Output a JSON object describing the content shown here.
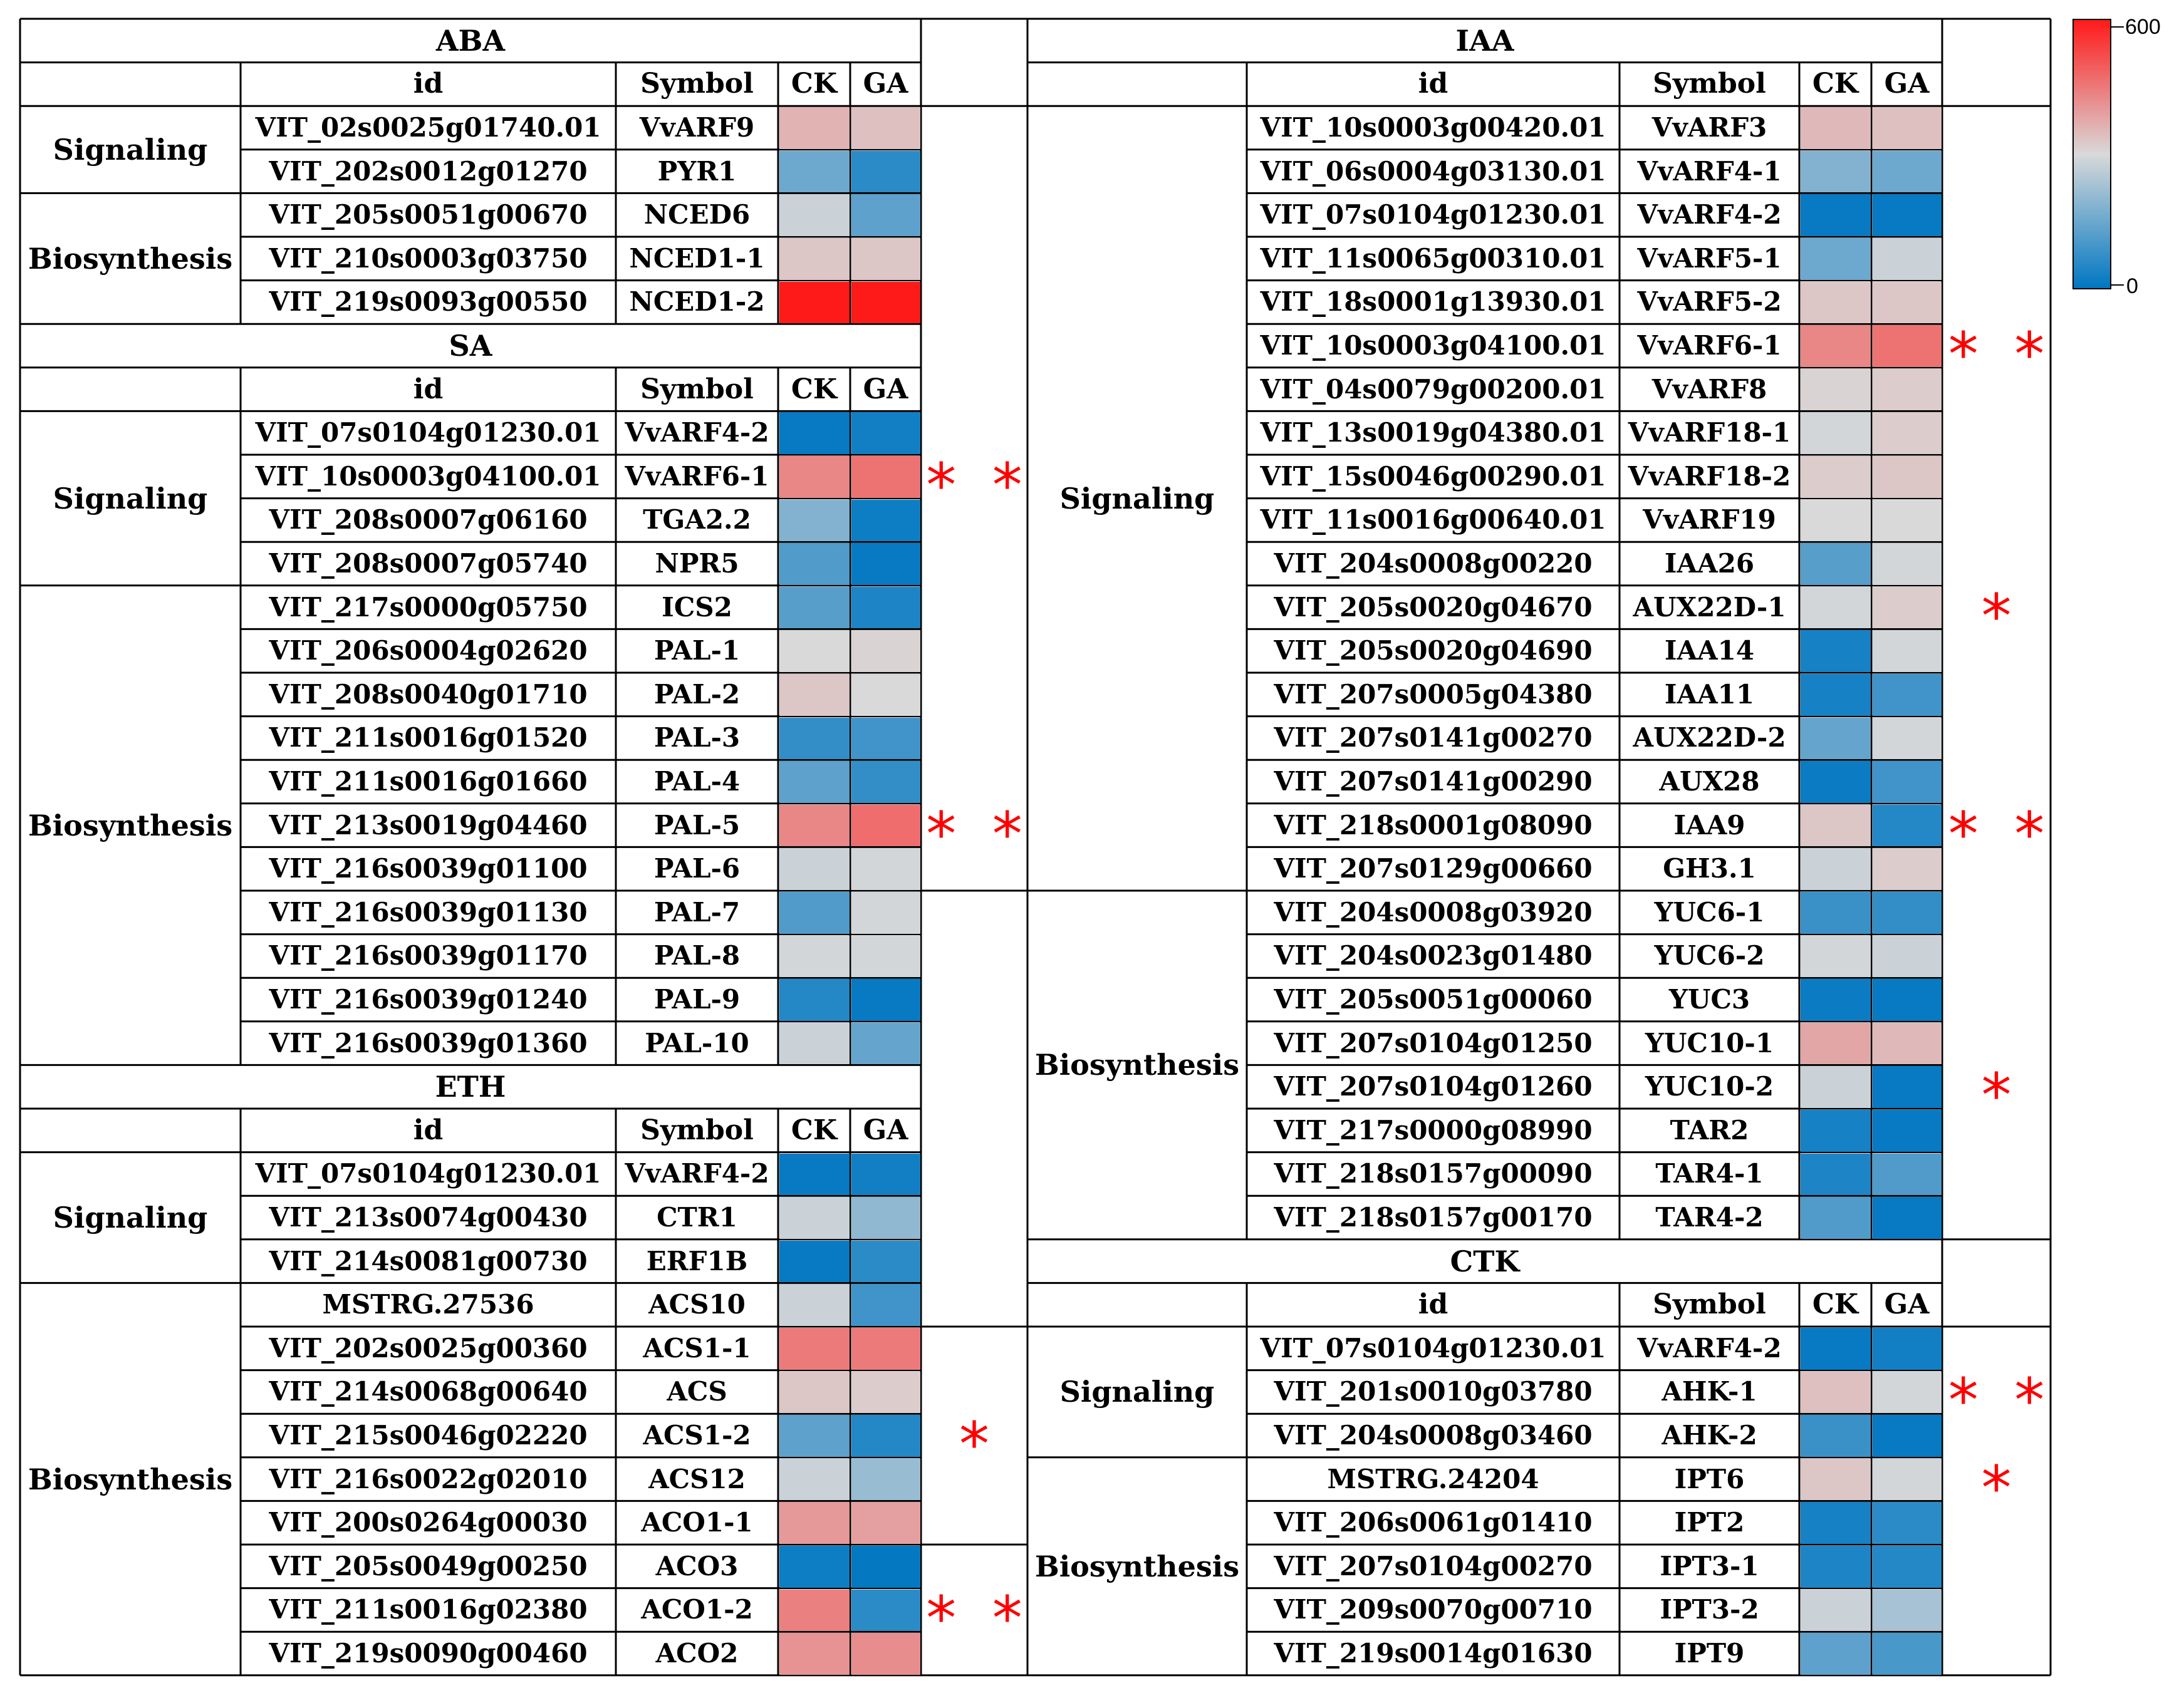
{
  "colorscale": {
    "max_label": "600",
    "min_label": "0",
    "max_value": 600,
    "low_color": "#0077c2",
    "mid_color": "#d9d9d9",
    "high_color": "#ff1a1a"
  },
  "headers": {
    "id": "id",
    "symbol": "Symbol",
    "ck": "CK",
    "ga": "GA"
  },
  "left_sections": [
    {
      "title": "ABA",
      "groups": [
        {
          "category": "Signaling",
          "rows": [
            {
              "id": "VIT_02s0025g01740.01",
              "symbol": "VvARF9",
              "ck": 360,
              "ga": 340,
              "sig": ""
            },
            {
              "id": "VIT_202s0012g01270",
              "symbol": "PYR1",
              "ck": 150,
              "ga": 60,
              "sig": ""
            }
          ]
        },
        {
          "category": "Biosynthesis",
          "rows": [
            {
              "id": "VIT_205s0051g00670",
              "symbol": "NCED6",
              "ck": 280,
              "ga": 130,
              "sig": ""
            },
            {
              "id": "VIT_210s0003g03750",
              "symbol": "NCED1-1",
              "ck": 330,
              "ga": 330,
              "sig": ""
            },
            {
              "id": "VIT_219s0093g00550",
              "symbol": "NCED1-2",
              "ck": 600,
              "ga": 600,
              "sig": ""
            }
          ]
        }
      ]
    },
    {
      "title": "SA",
      "groups": [
        {
          "category": "Signaling",
          "rows": [
            {
              "id": "VIT_07s0104g01230.01",
              "symbol": "VvARF4-2",
              "ck": 10,
              "ga": 25,
              "sig": ""
            },
            {
              "id": "VIT_10s0003g04100.01",
              "symbol": "VvARF6-1",
              "ck": 430,
              "ga": 460,
              "sig": "* *"
            },
            {
              "id": "VIT_208s0007g06160",
              "symbol": "TGA2.2",
              "ck": 180,
              "ga": 20,
              "sig": ""
            },
            {
              "id": "VIT_208s0007g05740",
              "symbol": "NPR5",
              "ck": 110,
              "ga": 10,
              "sig": ""
            }
          ]
        },
        {
          "category": "Biosynthesis",
          "rows": [
            {
              "id": "VIT_217s0000g05750",
              "symbol": "ICS2",
              "ck": 120,
              "ga": 40,
              "sig": ""
            },
            {
              "id": "VIT_206s0004g02620",
              "symbol": "PAL-1",
              "ck": 300,
              "ga": 310,
              "sig": ""
            },
            {
              "id": "VIT_208s0040g01710",
              "symbol": "PAL-2",
              "ck": 330,
              "ga": 300,
              "sig": ""
            },
            {
              "id": "VIT_211s0016g01520",
              "symbol": "PAL-3",
              "ck": 70,
              "ga": 90,
              "sig": ""
            },
            {
              "id": "VIT_211s0016g01660",
              "symbol": "PAL-4",
              "ck": 130,
              "ga": 70,
              "sig": ""
            },
            {
              "id": "VIT_213s0019g04460",
              "symbol": "PAL-5",
              "ck": 430,
              "ga": 470,
              "sig": "* *"
            },
            {
              "id": "VIT_216s0039g01100",
              "symbol": "PAL-6",
              "ck": 280,
              "ga": 290,
              "sig": ""
            },
            {
              "id": "VIT_216s0039g01130",
              "symbol": "PAL-7",
              "ck": 110,
              "ga": 290,
              "sig": ""
            },
            {
              "id": "VIT_216s0039g01170",
              "symbol": "PAL-8",
              "ck": 290,
              "ga": 290,
              "sig": ""
            },
            {
              "id": "VIT_216s0039g01240",
              "symbol": "PAL-9",
              "ck": 50,
              "ga": 10,
              "sig": ""
            },
            {
              "id": "VIT_216s0039g01360",
              "symbol": "PAL-10",
              "ck": 280,
              "ga": 140,
              "sig": ""
            }
          ]
        }
      ]
    },
    {
      "title": "ETH",
      "groups": [
        {
          "category": "Signaling",
          "rows": [
            {
              "id": "VIT_07s0104g01230.01",
              "symbol": "VvARF4-2",
              "ck": 10,
              "ga": 25,
              "sig": ""
            },
            {
              "id": "VIT_213s0074g00430",
              "symbol": "CTR1",
              "ck": 280,
              "ga": 200,
              "sig": ""
            },
            {
              "id": "VIT_214s0081g00730",
              "symbol": "ERF1B",
              "ck": 10,
              "ga": 60,
              "sig": ""
            }
          ]
        },
        {
          "category": "Biosynthesis",
          "rows": [
            {
              "id": "MSTRG.27536",
              "symbol": "ACS10",
              "ck": 280,
              "ga": 90,
              "sig": ""
            },
            {
              "id": "VIT_202s0025g00360",
              "symbol": "ACS1-1",
              "ck": 450,
              "ga": 450,
              "sig": ""
            },
            {
              "id": "VIT_214s0068g00640",
              "symbol": "ACS",
              "ck": 330,
              "ga": 320,
              "sig": ""
            },
            {
              "id": "VIT_215s0046g02220",
              "symbol": "ACS1-2",
              "ck": 130,
              "ga": 50,
              "sig": "*"
            },
            {
              "id": "VIT_216s0022g02010",
              "symbol": "ACS12",
              "ck": 280,
              "ga": 210,
              "sig": ""
            },
            {
              "id": "VIT_200s0264g00030",
              "symbol": "ACO1-1",
              "ck": 400,
              "ga": 390,
              "sig": ""
            },
            {
              "id": "VIT_205s0049g00250",
              "symbol": "ACO3",
              "ck": 20,
              "ga": 5,
              "sig": ""
            },
            {
              "id": "VIT_211s0016g02380",
              "symbol": "ACO1-2",
              "ck": 440,
              "ga": 60,
              "sig": "* *"
            },
            {
              "id": "VIT_219s0090g00460",
              "symbol": "ACO2",
              "ck": 410,
              "ga": 420,
              "sig": ""
            }
          ]
        }
      ]
    }
  ],
  "right_sections": [
    {
      "title": "IAA",
      "groups": [
        {
          "category": "Signaling",
          "rows": [
            {
              "id": "VIT_10s0003g00420.01",
              "symbol": "VvARF3",
              "ck": 350,
              "ga": 340,
              "sig": ""
            },
            {
              "id": "VIT_06s0004g03130.01",
              "symbol": "VvARF4-1",
              "ck": 180,
              "ga": 150,
              "sig": ""
            },
            {
              "id": "VIT_07s0104g01230.01",
              "symbol": "VvARF4-2",
              "ck": 10,
              "ga": 10,
              "sig": ""
            },
            {
              "id": "VIT_11s0065g00310.01",
              "symbol": "VvARF5-1",
              "ck": 150,
              "ga": 280,
              "sig": ""
            },
            {
              "id": "VIT_18s0001g13930.01",
              "symbol": "VvARF5-2",
              "ck": 330,
              "ga": 330,
              "sig": ""
            },
            {
              "id": "VIT_10s0003g04100.01",
              "symbol": "VvARF6-1",
              "ck": 430,
              "ga": 460,
              "sig": "* *"
            },
            {
              "id": "VIT_04s0079g00200.01",
              "symbol": "VvARF8",
              "ck": 310,
              "ga": 320,
              "sig": ""
            },
            {
              "id": "VIT_13s0019g04380.01",
              "symbol": "VvARF18-1",
              "ck": 290,
              "ga": 320,
              "sig": ""
            },
            {
              "id": "VIT_15s0046g00290.01",
              "symbol": "VvARF18-2",
              "ck": 320,
              "ga": 330,
              "sig": ""
            },
            {
              "id": "VIT_11s0016g00640.01",
              "symbol": "VvARF19",
              "ck": 300,
              "ga": 300,
              "sig": ""
            },
            {
              "id": "VIT_204s0008g00220",
              "symbol": "IAA26",
              "ck": 120,
              "ga": 290,
              "sig": ""
            },
            {
              "id": "VIT_205s0020g04670",
              "symbol": "AUX22D-1",
              "ck": 290,
              "ga": 320,
              "sig": "*"
            },
            {
              "id": "VIT_205s0020g04690",
              "symbol": "IAA14",
              "ck": 30,
              "ga": 290,
              "sig": ""
            },
            {
              "id": "VIT_207s0005g04380",
              "symbol": "IAA11",
              "ck": 30,
              "ga": 90,
              "sig": ""
            },
            {
              "id": "VIT_207s0141g00270",
              "symbol": "AUX22D-2",
              "ck": 140,
              "ga": 290,
              "sig": ""
            },
            {
              "id": "VIT_207s0141g00290",
              "symbol": "AUX28",
              "ck": 15,
              "ga": 90,
              "sig": ""
            },
            {
              "id": "VIT_218s0001g08090",
              "symbol": "IAA9",
              "ck": 330,
              "ga": 50,
              "sig": "* *"
            },
            {
              "id": "VIT_207s0129g00660",
              "symbol": "GH3.1",
              "ck": 280,
              "ga": 320,
              "sig": ""
            }
          ]
        },
        {
          "category": "Biosynthesis",
          "rows": [
            {
              "id": "VIT_204s0008g03920",
              "symbol": "YUC6-1",
              "ck": 80,
              "ga": 70,
              "sig": ""
            },
            {
              "id": "VIT_204s0023g01480",
              "symbol": "YUC6-2",
              "ck": 290,
              "ga": 280,
              "sig": ""
            },
            {
              "id": "VIT_205s0051g00060",
              "symbol": "YUC3",
              "ck": 15,
              "ga": 10,
              "sig": ""
            },
            {
              "id": "VIT_207s0104g01250",
              "symbol": "YUC10-1",
              "ck": 380,
              "ga": 350,
              "sig": ""
            },
            {
              "id": "VIT_207s0104g01260",
              "symbol": "YUC10-2",
              "ck": 280,
              "ga": 10,
              "sig": "*"
            },
            {
              "id": "VIT_217s0000g08990",
              "symbol": "TAR2",
              "ck": 30,
              "ga": 10,
              "sig": ""
            },
            {
              "id": "VIT_218s0157g00090",
              "symbol": "TAR4-1",
              "ck": 40,
              "ga": 110,
              "sig": ""
            },
            {
              "id": "VIT_218s0157g00170",
              "symbol": "TAR4-2",
              "ck": 110,
              "ga": 10,
              "sig": ""
            }
          ]
        }
      ]
    },
    {
      "title": "CTK",
      "groups": [
        {
          "category": "Signaling",
          "rows": [
            {
              "id": "VIT_07s0104g01230.01",
              "symbol": "VvARF4-2",
              "ck": 10,
              "ga": 25,
              "sig": ""
            },
            {
              "id": "VIT_201s0010g03780",
              "symbol": "AHK-1",
              "ck": 340,
              "ga": 290,
              "sig": "* *"
            },
            {
              "id": "VIT_204s0008g03460",
              "symbol": "AHK-2",
              "ck": 80,
              "ga": 10,
              "sig": ""
            }
          ]
        },
        {
          "category": "Biosynthesis",
          "rows": [
            {
              "id": "MSTRG.24204",
              "symbol": "IPT6",
              "ck": 330,
              "ga": 290,
              "sig": "*"
            },
            {
              "id": "VIT_206s0061g01410",
              "symbol": "IPT2",
              "ck": 30,
              "ga": 60,
              "sig": ""
            },
            {
              "id": "VIT_207s0104g00270",
              "symbol": "IPT3-1",
              "ck": 40,
              "ga": 50,
              "sig": ""
            },
            {
              "id": "VIT_209s0070g00710",
              "symbol": "IPT3-2",
              "ck": 280,
              "ga": 230,
              "sig": ""
            },
            {
              "id": "VIT_219s0014g01630",
              "symbol": "IPT9",
              "ck": 130,
              "ga": 100,
              "sig": ""
            }
          ]
        }
      ]
    }
  ]
}
